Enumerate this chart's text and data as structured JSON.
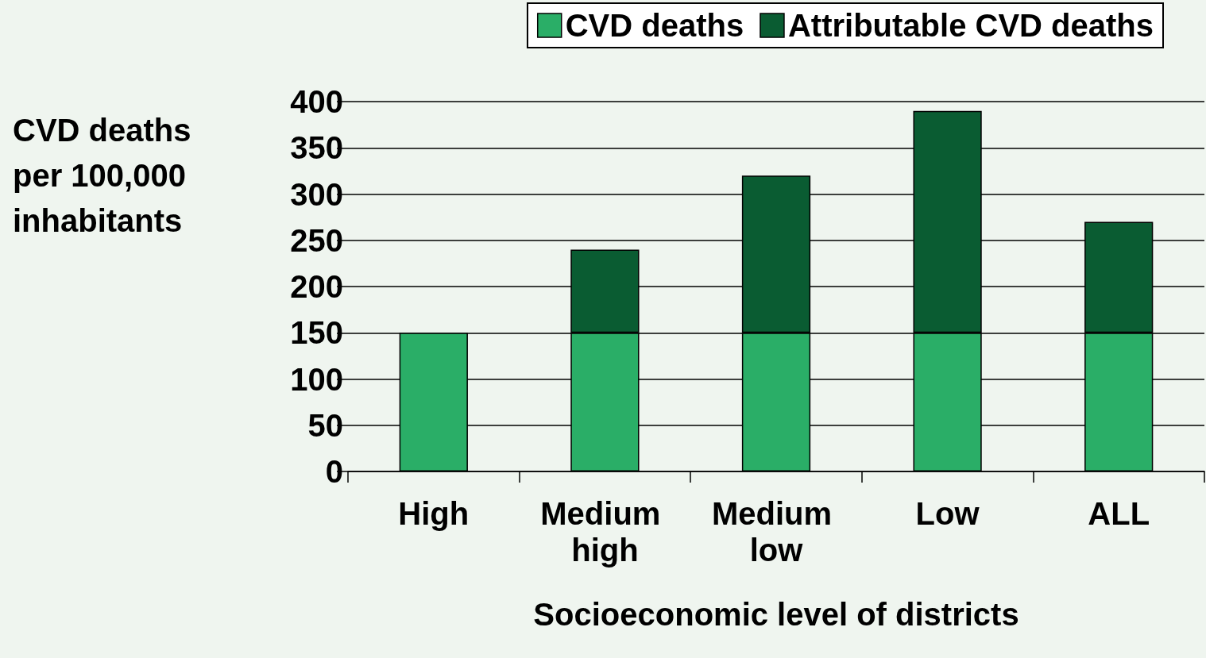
{
  "chart_data": {
    "type": "bar",
    "stacked": true,
    "categories": [
      "High",
      "Medium high",
      "Medium low",
      "Low",
      "ALL"
    ],
    "series": [
      {
        "name": "CVD deaths",
        "color": "#2aae67",
        "values": [
          150,
          150,
          150,
          150,
          150
        ]
      },
      {
        "name": "Attributable CVD deaths",
        "color": "#0a5c32",
        "values": [
          null,
          90,
          170,
          240,
          120
        ]
      }
    ],
    "xlabel": "Socioeconomic level of districts",
    "ylabel": "CVD deaths per 100,000 inhabitants",
    "ylim": [
      0,
      400
    ],
    "yticks": [
      0,
      50,
      100,
      150,
      200,
      250,
      300,
      350,
      400
    ],
    "grid": "y",
    "legend": "top right"
  }
}
